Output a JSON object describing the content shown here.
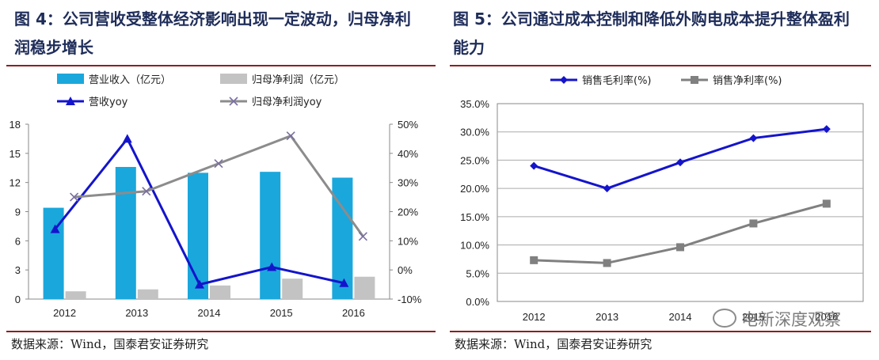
{
  "left": {
    "title": "图 4：公司营收受整体经济影响出现一定波动，归母净利润稳步增长",
    "source": "数据来源：Wind，国泰君安证券研究"
  },
  "right": {
    "title": "图 5：公司通过成本控制和降低外购电成本提升整体盈利能力",
    "source": "数据来源：Wind，国泰君安证券研究",
    "watermark": "电新深度观察"
  },
  "chart_data": [
    {
      "type": "bar",
      "categories": [
        "2012",
        "2013",
        "2014",
        "2015",
        "2016"
      ],
      "ylim": [
        0,
        18
      ],
      "yticks": [
        "0",
        "3",
        "6",
        "9",
        "12",
        "15",
        "18"
      ],
      "y2lim": [
        -10,
        50
      ],
      "y2ticks": [
        "-10%",
        "0%",
        "10%",
        "20%",
        "30%",
        "40%",
        "50%"
      ],
      "series": [
        {
          "name": "营业收入（亿元）",
          "kind": "bar",
          "axis": "left",
          "color": "#1aa7dc",
          "values": [
            9.4,
            13.6,
            13.0,
            13.1,
            12.5
          ]
        },
        {
          "name": "归母净利润（亿元）",
          "kind": "bar",
          "axis": "left",
          "color": "#c3c3c3",
          "values": [
            0.8,
            1.0,
            1.4,
            2.1,
            2.3
          ]
        },
        {
          "name": "营收yoy",
          "kind": "line",
          "axis": "right",
          "color": "#1414cc",
          "marker": "triangle",
          "values": [
            14,
            45,
            -5,
            1,
            -4.5
          ]
        },
        {
          "name": "归母净利润yoy",
          "kind": "line",
          "axis": "right",
          "color": "#8c8c8c",
          "marker": "x",
          "values": [
            25,
            27,
            36.5,
            46,
            11.5
          ]
        }
      ]
    },
    {
      "type": "line",
      "categories": [
        "2012",
        "2013",
        "2014",
        "2015",
        "2016"
      ],
      "ylim": [
        0,
        35
      ],
      "yticks": [
        "0.0%",
        "5.0%",
        "10.0%",
        "15.0%",
        "20.0%",
        "25.0%",
        "30.0%",
        "35.0%"
      ],
      "series": [
        {
          "name": "销售毛利率(%)",
          "color": "#1414cc",
          "marker": "diamond",
          "values": [
            24.0,
            20.0,
            24.6,
            28.9,
            30.5
          ]
        },
        {
          "name": "销售净利率(%)",
          "color": "#808080",
          "marker": "square",
          "values": [
            7.3,
            6.8,
            9.6,
            13.8,
            17.3
          ]
        }
      ]
    }
  ]
}
